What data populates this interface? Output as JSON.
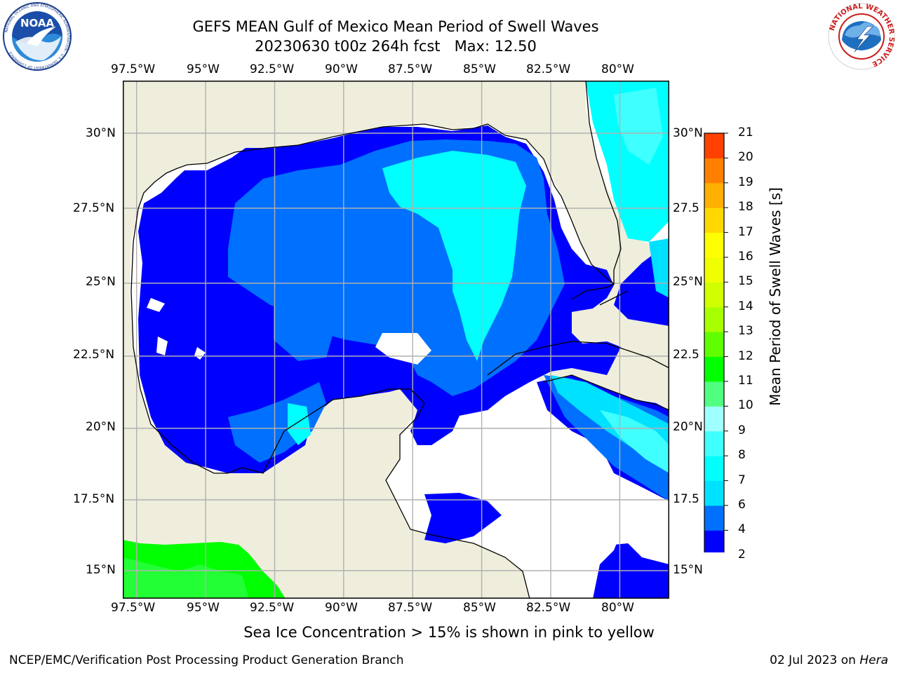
{
  "header": {
    "title_line1": "GEFS MEAN Gulf of Mexico Mean Period of Swell Waves",
    "title_line2": "20230630 t00z 264h fcst   Max: 12.50"
  },
  "logos": {
    "left": {
      "name": "NOAA",
      "text": "NOAA",
      "ring_text": "NATIONAL OCEANIC AND ATMOSPHERIC ADMINISTRATION · U.S. DEPARTMENT OF COMMERCE"
    },
    "right": {
      "name": "National Weather Service",
      "ring_text": "NATIONAL WEATHER SERVICE"
    }
  },
  "map": {
    "lon_labels": [
      "97.5°W",
      "95°W",
      "92.5°W",
      "90°W",
      "87.5°W",
      "85°W",
      "82.5°W",
      "80°W"
    ],
    "lon_values": [
      -97.5,
      -95,
      -92.5,
      -90,
      -87.5,
      -85,
      -82.5,
      -80
    ],
    "lat_labels_left": [
      "30°N",
      "27.5°N",
      "25°N",
      "22.5°N",
      "20°N",
      "17.5°N",
      "15°N"
    ],
    "lat_labels_right": [
      "30°N",
      "27.5",
      "25°N",
      "22.5",
      "20°N",
      "17.5",
      "15°N"
    ],
    "lat_values": [
      30,
      27.5,
      25,
      22.5,
      20,
      17.5,
      15
    ],
    "extent": {
      "lon_min": -98,
      "lon_max": -78.2,
      "lat_min": 14,
      "lat_max": 31.6
    },
    "colors": {
      "land": "#efeedc",
      "ocean_no_data": "#ffffff",
      "grid": "#b0b0b0",
      "coast": "#000000"
    }
  },
  "colorbar": {
    "label": "Mean Period of Swell Waves [s]",
    "ticks": [
      "2",
      "4",
      "6",
      "7",
      "8",
      "9",
      "10",
      "11",
      "12",
      "13",
      "14",
      "15",
      "16",
      "17",
      "18",
      "19",
      "20",
      "21"
    ],
    "colors": [
      "#0000ff",
      "#0070ff",
      "#00e0ff",
      "#00ffff",
      "#40ffff",
      "#a0ffff",
      "#50ff80",
      "#00ff00",
      "#60ff00",
      "#a8ff00",
      "#d0ff00",
      "#f0ff00",
      "#ffff00",
      "#ffd800",
      "#ffb000",
      "#ff8000",
      "#ff4000",
      "#ff0000"
    ],
    "extend": "min"
  },
  "swell_fields": [
    {
      "level": "2-4 s",
      "color": "#0000ff"
    },
    {
      "level": "4-6 s",
      "color": "#0070ff"
    },
    {
      "level": "6-7 s",
      "color": "#00e0ff"
    },
    {
      "level": "7-8 s",
      "color": "#00ffff"
    },
    {
      "level": "8-9 s",
      "color": "#40ffff"
    },
    {
      "level": "10-12 s",
      "color": "#00ff00"
    }
  ],
  "footer": {
    "note": "Sea Ice Concentration > 15% is shown in pink to yellow",
    "left": "NCEP/EMC/Verification Post Processing Product Generation Branch",
    "right_date": "02 Jul 2023 on",
    "right_machine": "Hera"
  }
}
